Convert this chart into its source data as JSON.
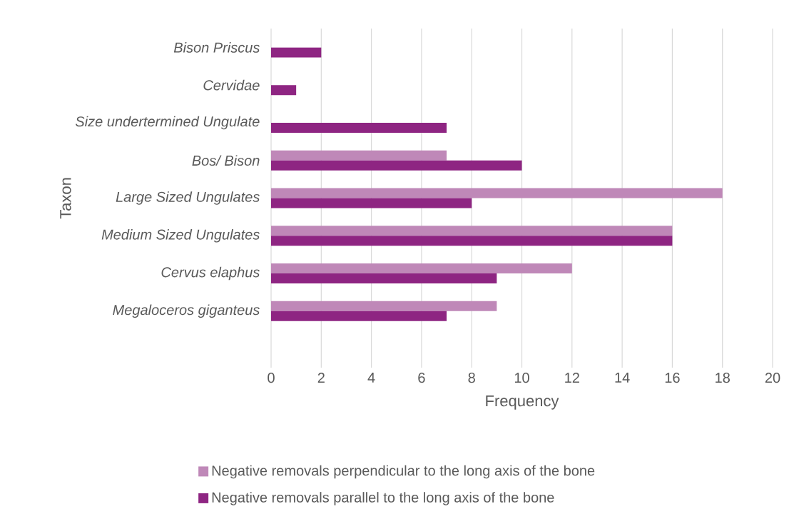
{
  "chart_data": {
    "type": "bar",
    "orientation": "horizontal",
    "xlabel": "Frequency",
    "ylabel": "Taxon",
    "categories": [
      "Bison Priscus",
      "Cervidae",
      "Size undertermined Ungulate",
      "Bos/ Bison",
      "Large Sized Ungulates",
      "Medium Sized Ungulates",
      "Cervus elaphus",
      "Megaloceros giganteus",
      null
    ],
    "series": [
      {
        "name": "Negative removals perpendicular to the long axis of the bone",
        "color": "#bf88b8",
        "values": [
          null,
          null,
          null,
          7,
          18,
          16,
          12,
          9,
          null
        ]
      },
      {
        "name": "Negative removals parallel to the long axis of the bone",
        "color": "#8e2582",
        "values": [
          2,
          1,
          7,
          10,
          8,
          16,
          9,
          7,
          null
        ]
      }
    ],
    "xlim": [
      0,
      20
    ],
    "xticks": [
      0,
      2,
      4,
      6,
      8,
      10,
      12,
      14,
      16,
      18,
      20
    ],
    "grid": "x",
    "legend": "bottom"
  }
}
